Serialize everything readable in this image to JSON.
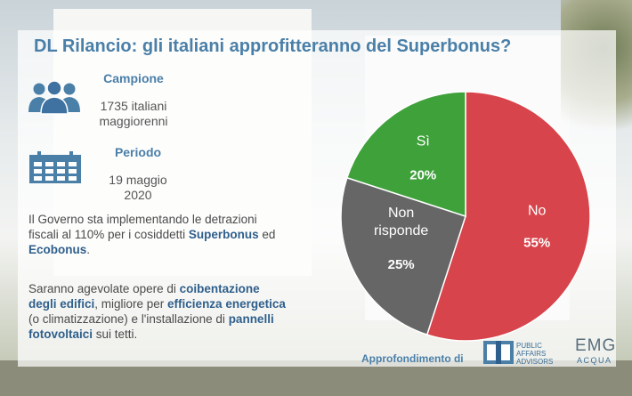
{
  "title": "DL Rilancio: gli italiani approfitteranno del Superbonus?",
  "sample": {
    "label": "Campione",
    "value_line1": "1735 italiani",
    "value_line2": "maggiorenni",
    "icon": "people-icon"
  },
  "period": {
    "label": "Periodo",
    "value_line1": "19 maggio",
    "value_line2": "2020",
    "icon": "calendar-icon"
  },
  "paragraph1": {
    "t1": "Il Governo sta implementando le detrazioni fiscali al 110% per i cosiddetti ",
    "b1": "Superbonus",
    "t2": " ed ",
    "b2": "Ecobonus",
    "t3": "."
  },
  "paragraph2": {
    "t1": "Saranno agevolate opere di ",
    "b1": "coibentazione degli edifici",
    "t2": ", migliore per ",
    "b2": "efficienza energetica",
    "t3": " (o climatizzazione) e l'installazione di ",
    "b3": "pannelli fotovoltaici",
    "t4": " sui tetti."
  },
  "footer": {
    "label": "Approfondimento di",
    "logo1_line1": "PUBLIC",
    "logo1_line2": "AFFAIRS",
    "logo1_line3": "ADVISORS",
    "logo2_main": "EMG",
    "logo2_sub": "ACQUA"
  },
  "colors": {
    "accent": "#4a7fa8",
    "no": "#d8444b",
    "si": "#3ea13a",
    "non_risponde": "#666666"
  },
  "chart_data": {
    "type": "pie",
    "slices": [
      {
        "label": "No",
        "value": 55,
        "display": "55%",
        "color": "#d8444b"
      },
      {
        "label": "Non risponde",
        "value": 25,
        "display": "25%",
        "color": "#666666"
      },
      {
        "label": "Sì",
        "value": 20,
        "display": "20%",
        "color": "#3ea13a"
      }
    ]
  }
}
